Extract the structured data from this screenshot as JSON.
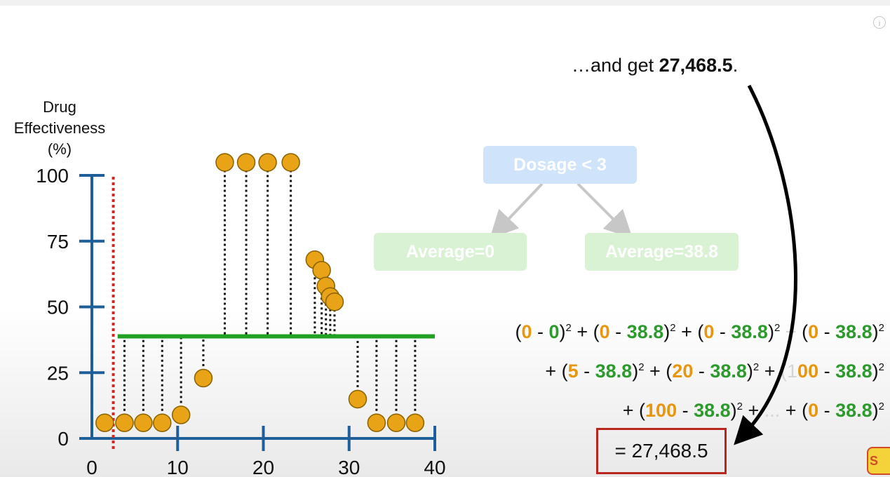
{
  "chart_data": {
    "type": "scatter",
    "ylabel": "Drug\nEffectiveness\n(%)",
    "xlabel": "",
    "xlim": [
      0,
      40
    ],
    "ylim": [
      0,
      100
    ],
    "x_ticks": [
      0,
      10,
      20,
      30,
      40
    ],
    "y_ticks": [
      0,
      25,
      50,
      75,
      100
    ],
    "threshold_x": 2.5,
    "mean_line": {
      "y": 38.8,
      "x_start": 3,
      "x_end": 40
    },
    "points": [
      {
        "x": 1.5,
        "y": 3
      },
      {
        "x": 3.8,
        "y": 3
      },
      {
        "x": 6,
        "y": 3
      },
      {
        "x": 8.2,
        "y": 3
      },
      {
        "x": 10.4,
        "y": 6
      },
      {
        "x": 13,
        "y": 20
      },
      {
        "x": 15.5,
        "y": 102
      },
      {
        "x": 18,
        "y": 102
      },
      {
        "x": 20.5,
        "y": 102
      },
      {
        "x": 23.2,
        "y": 102
      },
      {
        "x": 26,
        "y": 65
      },
      {
        "x": 26.8,
        "y": 61
      },
      {
        "x": 27.3,
        "y": 55
      },
      {
        "x": 27.8,
        "y": 51
      },
      {
        "x": 28.3,
        "y": 49
      },
      {
        "x": 31,
        "y": 12
      },
      {
        "x": 33.2,
        "y": 3
      },
      {
        "x": 35.5,
        "y": 3
      },
      {
        "x": 37.7,
        "y": 3
      }
    ],
    "colors": {
      "axis": "#1e5f9a",
      "point": "#e8a317",
      "point_edge": "#8a6200",
      "mean": "#22a022",
      "threshold": "#cc2b21"
    }
  },
  "tree": {
    "root": "Dosage < 3",
    "left": "Average=0",
    "right": "Average=38.8"
  },
  "callout": {
    "prefix": "…and get ",
    "value": "27,468.5",
    "suffix": "."
  },
  "equation": {
    "line1": [
      {
        "t": "(",
        "c": ""
      },
      {
        "t": "0",
        "c": "o"
      },
      {
        "t": " - ",
        "c": ""
      },
      {
        "t": "0",
        "c": "g"
      },
      {
        "t": ")",
        "c": ""
      },
      {
        "t": "2",
        "c": "sup"
      },
      {
        "t": " + (",
        "c": ""
      },
      {
        "t": "0",
        "c": "o"
      },
      {
        "t": " - ",
        "c": ""
      },
      {
        "t": "38.8",
        "c": "g"
      },
      {
        "t": ")",
        "c": ""
      },
      {
        "t": "2",
        "c": "sup"
      },
      {
        "t": " + (",
        "c": ""
      },
      {
        "t": "0",
        "c": "o"
      },
      {
        "t": " - ",
        "c": ""
      },
      {
        "t": "38.8",
        "c": "g"
      },
      {
        "t": ")",
        "c": ""
      },
      {
        "t": "2",
        "c": "sup"
      },
      {
        "t": " + ",
        "c": "fade"
      },
      {
        "t": "(",
        "c": ""
      },
      {
        "t": "0",
        "c": "o"
      },
      {
        "t": " - ",
        "c": ""
      },
      {
        "t": "38.8",
        "c": "g"
      },
      {
        "t": ")",
        "c": ""
      },
      {
        "t": "2",
        "c": "sup"
      }
    ],
    "line2": [
      {
        "t": "+ (",
        "c": ""
      },
      {
        "t": "5",
        "c": "o"
      },
      {
        "t": " - ",
        "c": ""
      },
      {
        "t": "38.8",
        "c": "g"
      },
      {
        "t": ")",
        "c": ""
      },
      {
        "t": "2",
        "c": "sup"
      },
      {
        "t": " + (",
        "c": ""
      },
      {
        "t": "20",
        "c": "o"
      },
      {
        "t": " - ",
        "c": ""
      },
      {
        "t": "38.8",
        "c": "g"
      },
      {
        "t": ")",
        "c": ""
      },
      {
        "t": "2",
        "c": "sup"
      },
      {
        "t": " + ",
        "c": ""
      },
      {
        "t": "(1",
        "c": "fade"
      },
      {
        "t": "00",
        "c": "o"
      },
      {
        "t": " - ",
        "c": ""
      },
      {
        "t": "38.8",
        "c": "g"
      },
      {
        "t": ")",
        "c": ""
      },
      {
        "t": "2",
        "c": "sup"
      }
    ],
    "line3": [
      {
        "t": "+ (",
        "c": ""
      },
      {
        "t": "100",
        "c": "o"
      },
      {
        "t": " - ",
        "c": ""
      },
      {
        "t": "38.8",
        "c": "g"
      },
      {
        "t": ")",
        "c": ""
      },
      {
        "t": "2",
        "c": "sup"
      },
      {
        "t": " + ",
        "c": ""
      },
      {
        "t": "...",
        "c": "fade"
      },
      {
        "t": " + (",
        "c": ""
      },
      {
        "t": "0",
        "c": "o"
      },
      {
        "t": " - ",
        "c": ""
      },
      {
        "t": "38.8",
        "c": "g"
      },
      {
        "t": ")",
        "c": ""
      },
      {
        "t": "2",
        "c": "sup"
      }
    ],
    "result": "= 27,468.5"
  },
  "icons": {
    "info": "i",
    "logo": "S"
  }
}
